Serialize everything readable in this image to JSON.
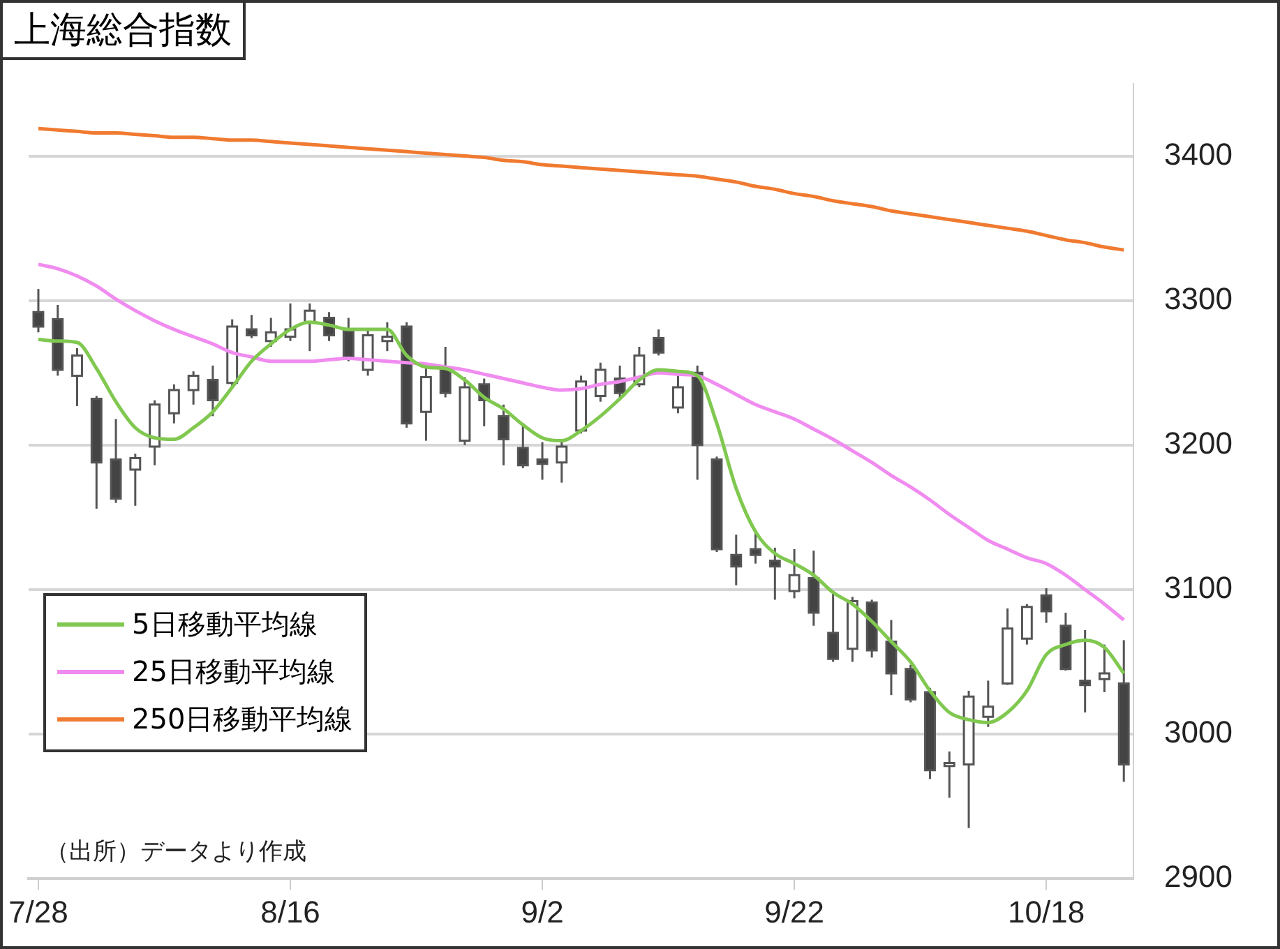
{
  "chart_data": {
    "type": "candlestick",
    "title": "上海総合指数",
    "categories": [
      "7/28",
      null,
      null,
      null,
      null,
      null,
      null,
      null,
      null,
      null,
      null,
      null,
      null,
      "8/16",
      null,
      null,
      null,
      null,
      null,
      null,
      null,
      null,
      null,
      null,
      null,
      null,
      "9/2",
      null,
      null,
      null,
      null,
      null,
      null,
      null,
      null,
      null,
      null,
      null,
      null,
      "9/22",
      null,
      null,
      null,
      null,
      null,
      null,
      null,
      null,
      null,
      null,
      null,
      null,
      "10/18",
      null,
      null,
      null,
      null
    ],
    "ohlc": [
      [
        3292,
        3308,
        3278,
        3282
      ],
      [
        3287,
        3297,
        3248,
        3252
      ],
      [
        3248,
        3267,
        3227,
        3262
      ],
      [
        3232,
        3234,
        3156,
        3188
      ],
      [
        3190,
        3218,
        3160,
        3163
      ],
      [
        3183,
        3194,
        3158,
        3191
      ],
      [
        3199,
        3231,
        3186,
        3228
      ],
      [
        3222,
        3242,
        3215,
        3238
      ],
      [
        3238,
        3251,
        3228,
        3248
      ],
      [
        3245,
        3255,
        3220,
        3231
      ],
      [
        3243,
        3287,
        3240,
        3282
      ],
      [
        3280,
        3290,
        3274,
        3276
      ],
      [
        3272,
        3288,
        3268,
        3278
      ],
      [
        3275,
        3298,
        3272,
        3280
      ],
      [
        3285,
        3298,
        3265,
        3293
      ],
      [
        3288,
        3292,
        3272,
        3276
      ],
      [
        3279,
        3288,
        3258,
        3260
      ],
      [
        3252,
        3280,
        3248,
        3276
      ],
      [
        3272,
        3285,
        3265,
        3275
      ],
      [
        3282,
        3285,
        3212,
        3215
      ],
      [
        3223,
        3253,
        3203,
        3247
      ],
      [
        3253,
        3268,
        3233,
        3236
      ],
      [
        3203,
        3247,
        3200,
        3240
      ],
      [
        3242,
        3246,
        3213,
        3231
      ],
      [
        3220,
        3228,
        3186,
        3204
      ],
      [
        3198,
        3215,
        3184,
        3186
      ],
      [
        3190,
        3202,
        3176,
        3187
      ],
      [
        3188,
        3203,
        3174,
        3199
      ],
      [
        3210,
        3248,
        3208,
        3244
      ],
      [
        3234,
        3257,
        3230,
        3252
      ],
      [
        3246,
        3255,
        3232,
        3236
      ],
      [
        3242,
        3268,
        3240,
        3262
      ],
      [
        3274,
        3280,
        3262,
        3264
      ],
      [
        3226,
        3248,
        3222,
        3240
      ],
      [
        3250,
        3255,
        3176,
        3200
      ],
      [
        3190,
        3192,
        3126,
        3128
      ],
      [
        3124,
        3138,
        3103,
        3116
      ],
      [
        3128,
        3141,
        3118,
        3124
      ],
      [
        3120,
        3129,
        3093,
        3116
      ],
      [
        3099,
        3128,
        3094,
        3110
      ],
      [
        3108,
        3127,
        3075,
        3084
      ],
      [
        3070,
        3099,
        3050,
        3052
      ],
      [
        3059,
        3095,
        3050,
        3092
      ],
      [
        3091,
        3093,
        3053,
        3058
      ],
      [
        3064,
        3079,
        3027,
        3042
      ],
      [
        3045,
        3048,
        3022,
        3024
      ],
      [
        3029,
        3032,
        2969,
        2975
      ],
      [
        2978,
        2988,
        2956,
        2980
      ],
      [
        2979,
        3030,
        2935,
        3026
      ],
      [
        3012,
        3037,
        3005,
        3019
      ],
      [
        3035,
        3087,
        3034,
        3073
      ],
      [
        3066,
        3090,
        3062,
        3088
      ],
      [
        3096,
        3101,
        3077,
        3085
      ],
      [
        3075,
        3084,
        3044,
        3045
      ],
      [
        3037,
        3072,
        3015,
        3034
      ],
      [
        3038,
        3062,
        3029,
        3042
      ],
      [
        3035,
        3065,
        2967,
        2979
      ]
    ],
    "series": [
      {
        "name": "5日移動平均線",
        "type": "line",
        "color": "#80c850",
        "values": [
          3273,
          3272,
          3271,
          3253,
          3230,
          3212,
          3205,
          3204,
          3212,
          3223,
          3240,
          3258,
          3270,
          3280,
          3285,
          3283,
          3280,
          3280,
          3280,
          3262,
          3254,
          3253,
          3245,
          3233,
          3225,
          3214,
          3205,
          3203,
          3210,
          3220,
          3232,
          3245,
          3252,
          3251,
          3248,
          3215,
          3170,
          3140,
          3125,
          3118,
          3110,
          3098,
          3090,
          3078,
          3064,
          3050,
          3030,
          3015,
          3010,
          3008,
          3015,
          3030,
          3055,
          3062,
          3065,
          3060,
          3042
        ]
      },
      {
        "name": "25日移動平均線",
        "type": "line",
        "color": "#f08cf0",
        "values": [
          3325,
          3322,
          3317,
          3310,
          3301,
          3293,
          3286,
          3280,
          3275,
          3270,
          3264,
          3261,
          3258,
          3258,
          3258,
          3259,
          3260,
          3259,
          3258,
          3257,
          3256,
          3254,
          3252,
          3249,
          3246,
          3243,
          3240,
          3238,
          3239,
          3242,
          3244,
          3247,
          3250,
          3249,
          3248,
          3242,
          3235,
          3228,
          3223,
          3218,
          3211,
          3204,
          3196,
          3188,
          3179,
          3171,
          3162,
          3152,
          3143,
          3134,
          3128,
          3122,
          3118,
          3110,
          3100,
          3090,
          3079
        ]
      },
      {
        "name": "250日移動平均線",
        "type": "line",
        "color": "#f07a30",
        "values": [
          3419,
          3418,
          3417,
          3416,
          3416,
          3415,
          3414,
          3413,
          3413,
          3412,
          3411,
          3411,
          3410,
          3409,
          3408,
          3407,
          3406,
          3405,
          3404,
          3403,
          3402,
          3401,
          3400,
          3399,
          3397,
          3396,
          3394,
          3393,
          3392,
          3391,
          3390,
          3389,
          3388,
          3387,
          3386,
          3384,
          3382,
          3379,
          3377,
          3374,
          3372,
          3369,
          3367,
          3365,
          3362,
          3360,
          3358,
          3356,
          3354,
          3352,
          3350,
          3348,
          3345,
          3342,
          3340,
          3337,
          3335
        ]
      }
    ],
    "ylim": [
      2900,
      3450
    ],
    "yticks": [
      2900,
      3000,
      3100,
      3200,
      3300,
      3400
    ],
    "grid": "y",
    "legend": "bottom left",
    "annotations": [
      "（出所）データより作成"
    ]
  }
}
